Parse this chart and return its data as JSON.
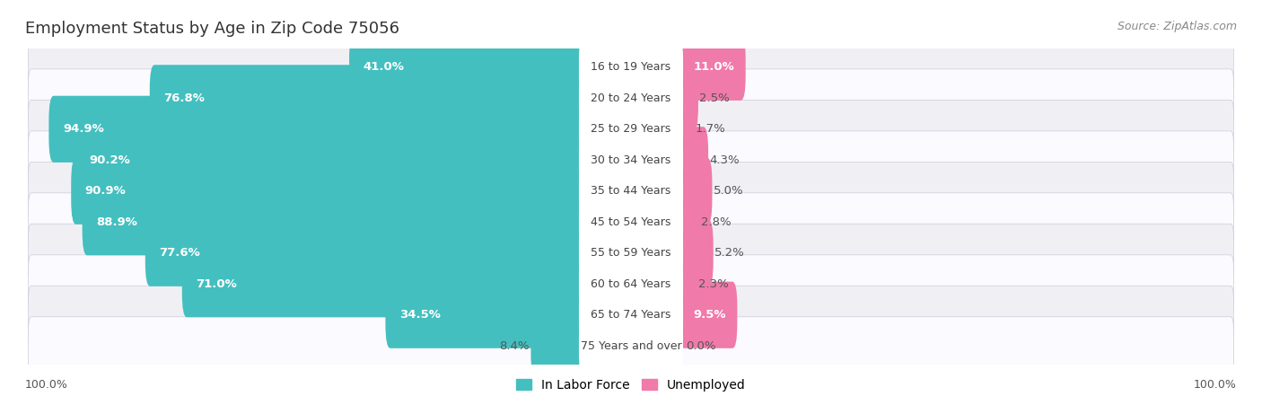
{
  "title": "Employment Status by Age in Zip Code 75056",
  "source": "Source: ZipAtlas.com",
  "categories": [
    "16 to 19 Years",
    "20 to 24 Years",
    "25 to 29 Years",
    "30 to 34 Years",
    "35 to 44 Years",
    "45 to 54 Years",
    "55 to 59 Years",
    "60 to 64 Years",
    "65 to 74 Years",
    "75 Years and over"
  ],
  "in_labor_force": [
    41.0,
    76.8,
    94.9,
    90.2,
    90.9,
    88.9,
    77.6,
    71.0,
    34.5,
    8.4
  ],
  "unemployed": [
    11.0,
    2.5,
    1.7,
    4.3,
    5.0,
    2.8,
    5.2,
    2.3,
    9.5,
    0.0
  ],
  "labor_color": "#44bfbf",
  "unemployed_color": "#f07aaa",
  "row_bg_even": "#f0f0f4",
  "row_bg_odd": "#fafaff",
  "label_pill_color": "#ffffff",
  "axis_label_left": "100.0%",
  "axis_label_right": "100.0%",
  "legend_labor": "In Labor Force",
  "legend_unemployed": "Unemployed",
  "title_fontsize": 13,
  "source_fontsize": 9,
  "bar_label_fontsize": 9.5,
  "category_fontsize": 9,
  "legend_fontsize": 10,
  "axis_fontsize": 9
}
